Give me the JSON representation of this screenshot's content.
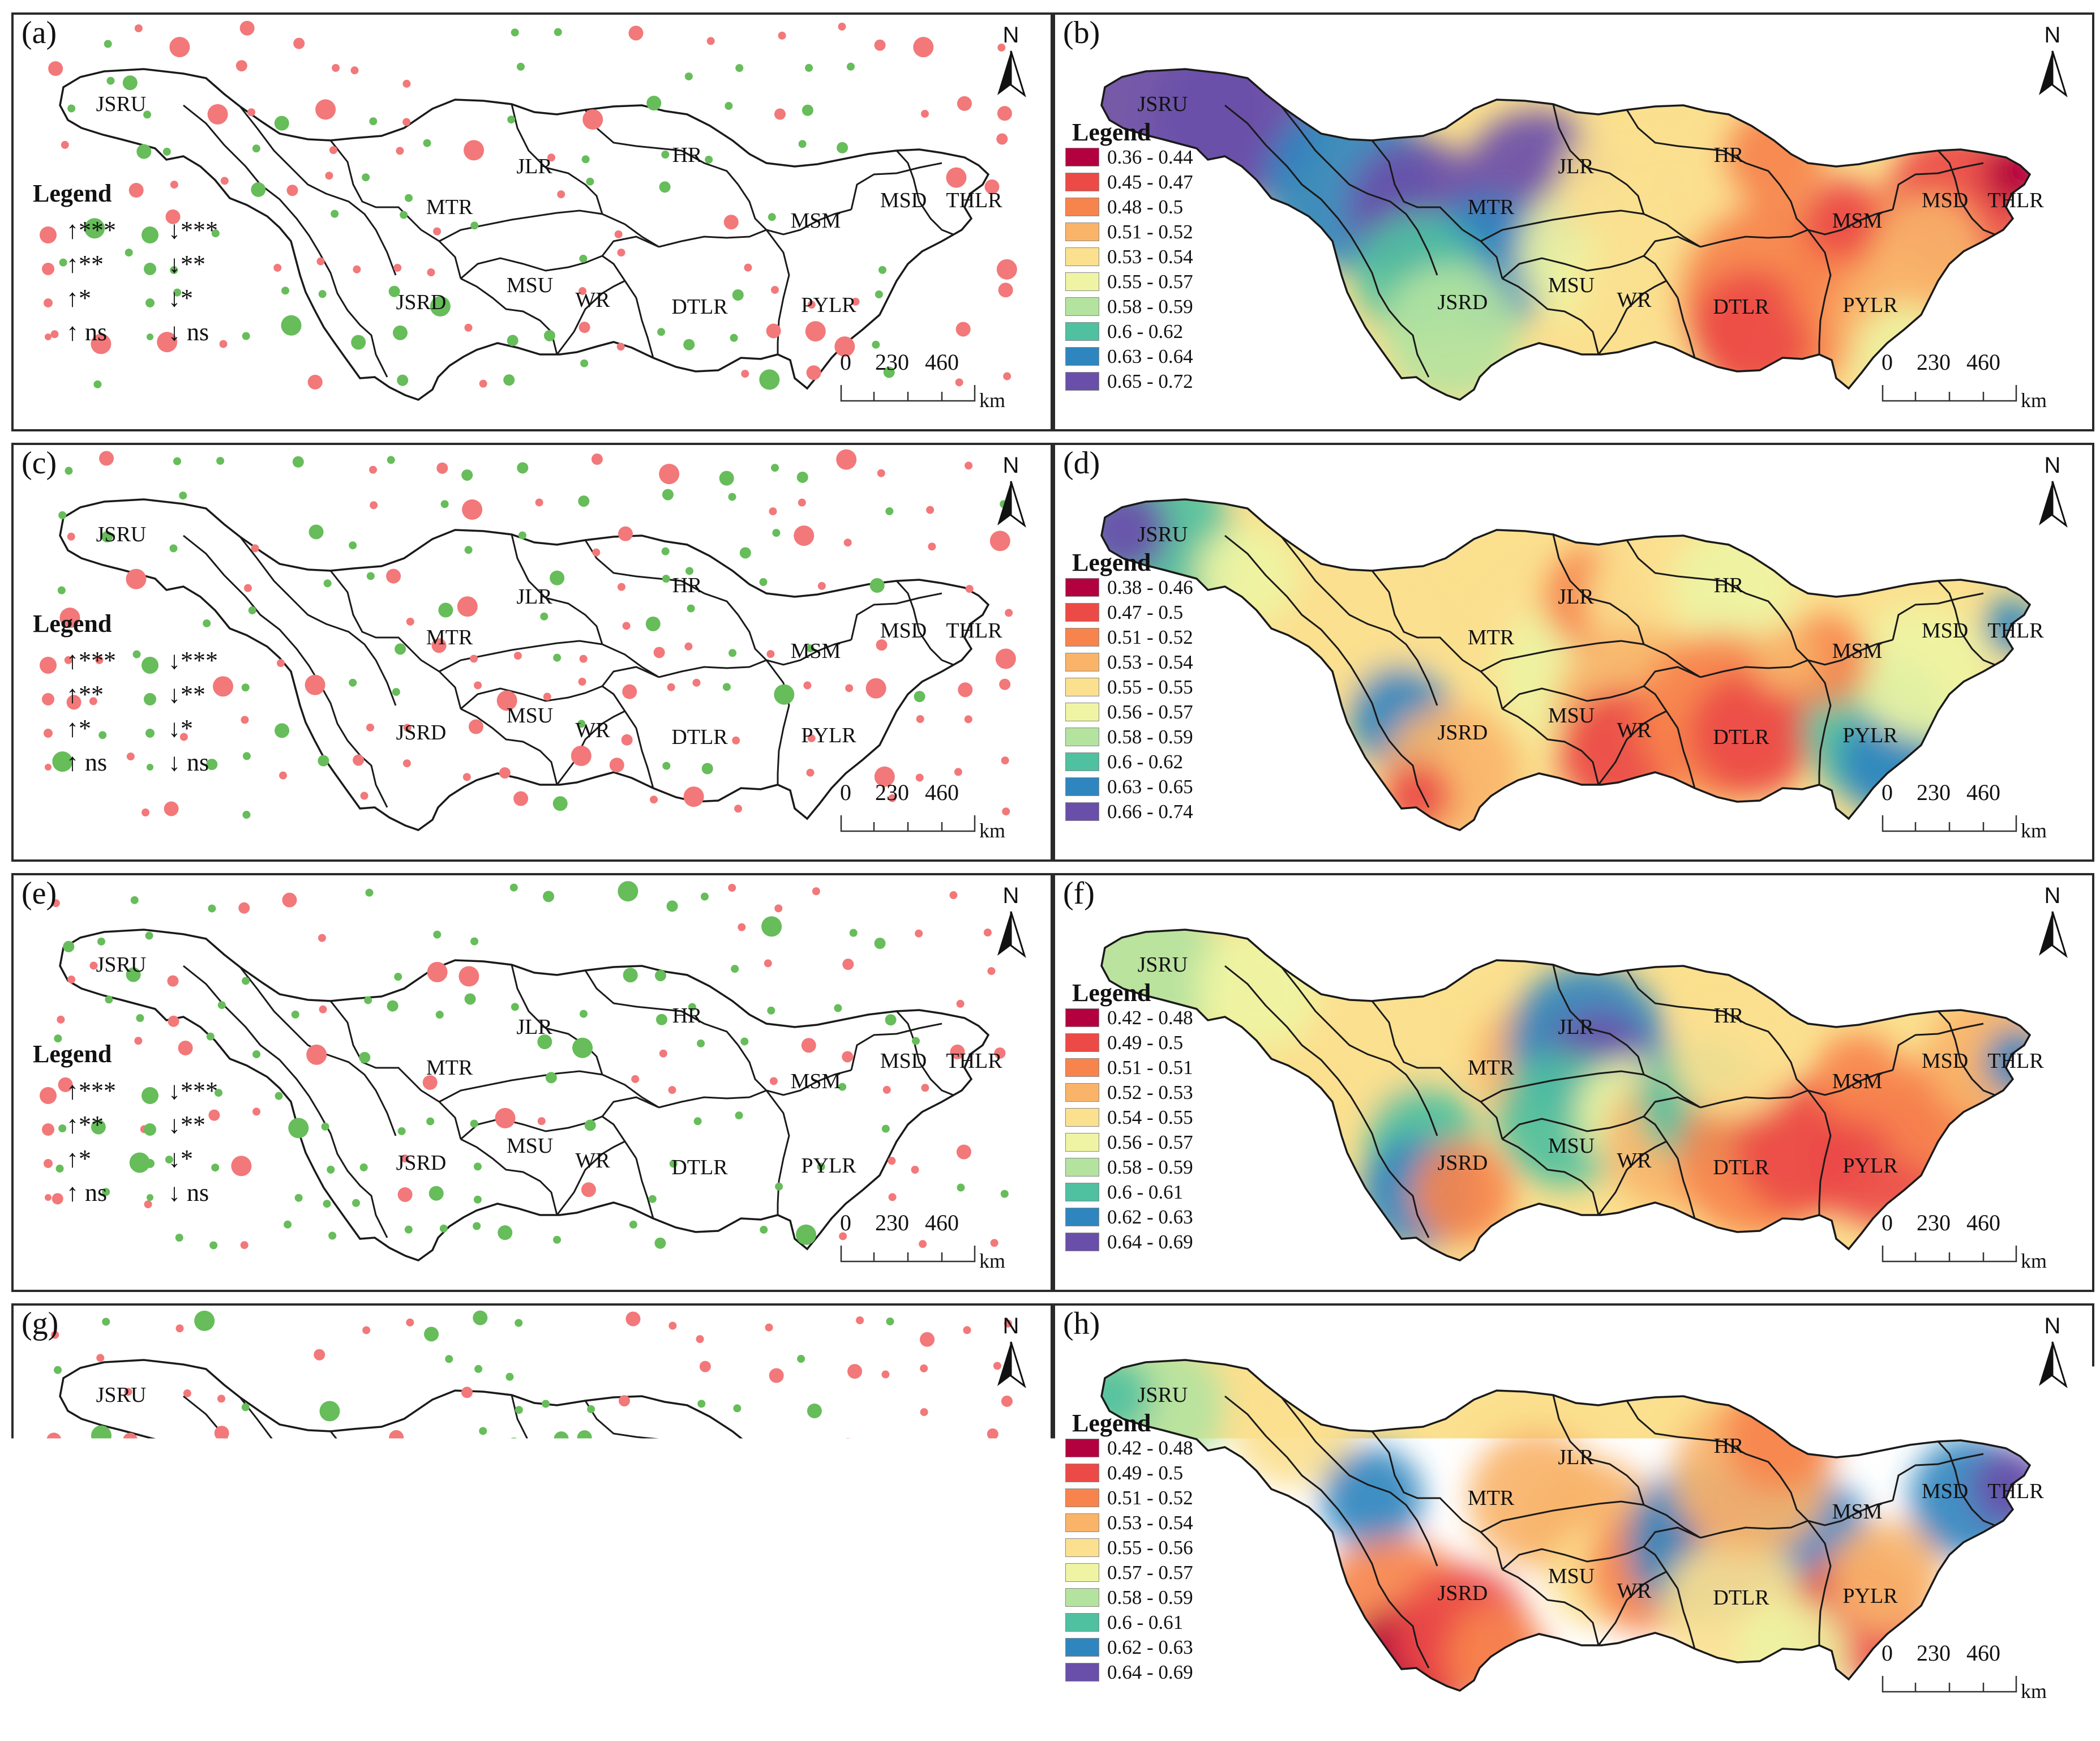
{
  "north_label": "N",
  "scale_bar": {
    "ticks": [
      "0",
      "230",
      "460"
    ],
    "unit": "km"
  },
  "dot_legend": {
    "title": "Legend",
    "up_color": "#f2787a",
    "down_color": "#66bd5a",
    "entries": [
      {
        "up": "↑***",
        "down": "↓***"
      },
      {
        "up": "↑**",
        "down": "↓**"
      },
      {
        "up": "↑*",
        "down": "↓*"
      },
      {
        "up": "↑ ns",
        "down": "↓ ns"
      }
    ]
  },
  "subbasins": [
    "JSRU",
    "JSRD",
    "MTR",
    "JLR",
    "HR",
    "MSU",
    "WR",
    "DTLR",
    "MSM",
    "MSD",
    "THLR",
    "PYLR"
  ],
  "panels": [
    {
      "id": "a",
      "label": "(a)",
      "type": "trend-dots"
    },
    {
      "id": "b",
      "label": "(b)",
      "type": "choropleth",
      "legend_title": "Legend",
      "classes": [
        {
          "range": "0.36 - 0.44",
          "color": "#b3003e"
        },
        {
          "range": "0.45 - 0.47",
          "color": "#ec4a46"
        },
        {
          "range": "0.48 - 0.5",
          "color": "#f7844d"
        },
        {
          "range": "0.51 - 0.52",
          "color": "#f9b46a"
        },
        {
          "range": "0.53 - 0.54",
          "color": "#fbe08f"
        },
        {
          "range": "0.55 - 0.57",
          "color": "#eef4a3"
        },
        {
          "range": "0.58 - 0.59",
          "color": "#b4e3a0"
        },
        {
          "range": "0.6 - 0.62",
          "color": "#4fc0a0"
        },
        {
          "range": "0.63 - 0.64",
          "color": "#2f86bf"
        },
        {
          "range": "0.65 - 0.72",
          "color": "#6a4faa"
        }
      ]
    },
    {
      "id": "c",
      "label": "(c)",
      "type": "trend-dots"
    },
    {
      "id": "d",
      "label": "(d)",
      "type": "choropleth",
      "legend_title": "Legend",
      "classes": [
        {
          "range": "0.38 - 0.46",
          "color": "#b3003e"
        },
        {
          "range": "0.47 - 0.5",
          "color": "#ec4a46"
        },
        {
          "range": "0.51 - 0.52",
          "color": "#f7844d"
        },
        {
          "range": "0.53 - 0.54",
          "color": "#f9b46a"
        },
        {
          "range": "0.55 - 0.55",
          "color": "#fbe08f"
        },
        {
          "range": "0.56 - 0.57",
          "color": "#eef4a3"
        },
        {
          "range": "0.58 - 0.59",
          "color": "#b4e3a0"
        },
        {
          "range": "0.6 - 0.62",
          "color": "#4fc0a0"
        },
        {
          "range": "0.63 - 0.65",
          "color": "#2f86bf"
        },
        {
          "range": "0.66 - 0.74",
          "color": "#6a4faa"
        }
      ]
    },
    {
      "id": "e",
      "label": "(e)",
      "type": "trend-dots"
    },
    {
      "id": "f",
      "label": "(f)",
      "type": "choropleth",
      "legend_title": "Legend",
      "classes": [
        {
          "range": "0.42 - 0.48",
          "color": "#b3003e"
        },
        {
          "range": "0.49 - 0.5",
          "color": "#ec4a46"
        },
        {
          "range": "0.51 - 0.51",
          "color": "#f7844d"
        },
        {
          "range": "0.52 - 0.53",
          "color": "#f9b46a"
        },
        {
          "range": "0.54 - 0.55",
          "color": "#fbe08f"
        },
        {
          "range": "0.56 - 0.57",
          "color": "#eef4a3"
        },
        {
          "range": "0.58 - 0.59",
          "color": "#b4e3a0"
        },
        {
          "range": "0.6 - 0.61",
          "color": "#4fc0a0"
        },
        {
          "range": "0.62 - 0.63",
          "color": "#2f86bf"
        },
        {
          "range": "0.64 - 0.69",
          "color": "#6a4faa"
        }
      ]
    },
    {
      "id": "g",
      "label": "(g)",
      "type": "trend-dots"
    },
    {
      "id": "h",
      "label": "(h)",
      "type": "choropleth",
      "legend_title": "Legend",
      "classes": [
        {
          "range": "0.42 - 0.48",
          "color": "#b3003e"
        },
        {
          "range": "0.49 - 0.5",
          "color": "#ec4a46"
        },
        {
          "range": "0.51 - 0.52",
          "color": "#f7844d"
        },
        {
          "range": "0.53 - 0.54",
          "color": "#f9b46a"
        },
        {
          "range": "0.55 - 0.56",
          "color": "#fbe08f"
        },
        {
          "range": "0.57 - 0.57",
          "color": "#eef4a3"
        },
        {
          "range": "0.58 - 0.59",
          "color": "#b4e3a0"
        },
        {
          "range": "0.6 - 0.61",
          "color": "#4fc0a0"
        },
        {
          "range": "0.62 - 0.63",
          "color": "#2f86bf"
        },
        {
          "range": "0.64 - 0.69",
          "color": "#6a4faa"
        }
      ]
    }
  ]
}
